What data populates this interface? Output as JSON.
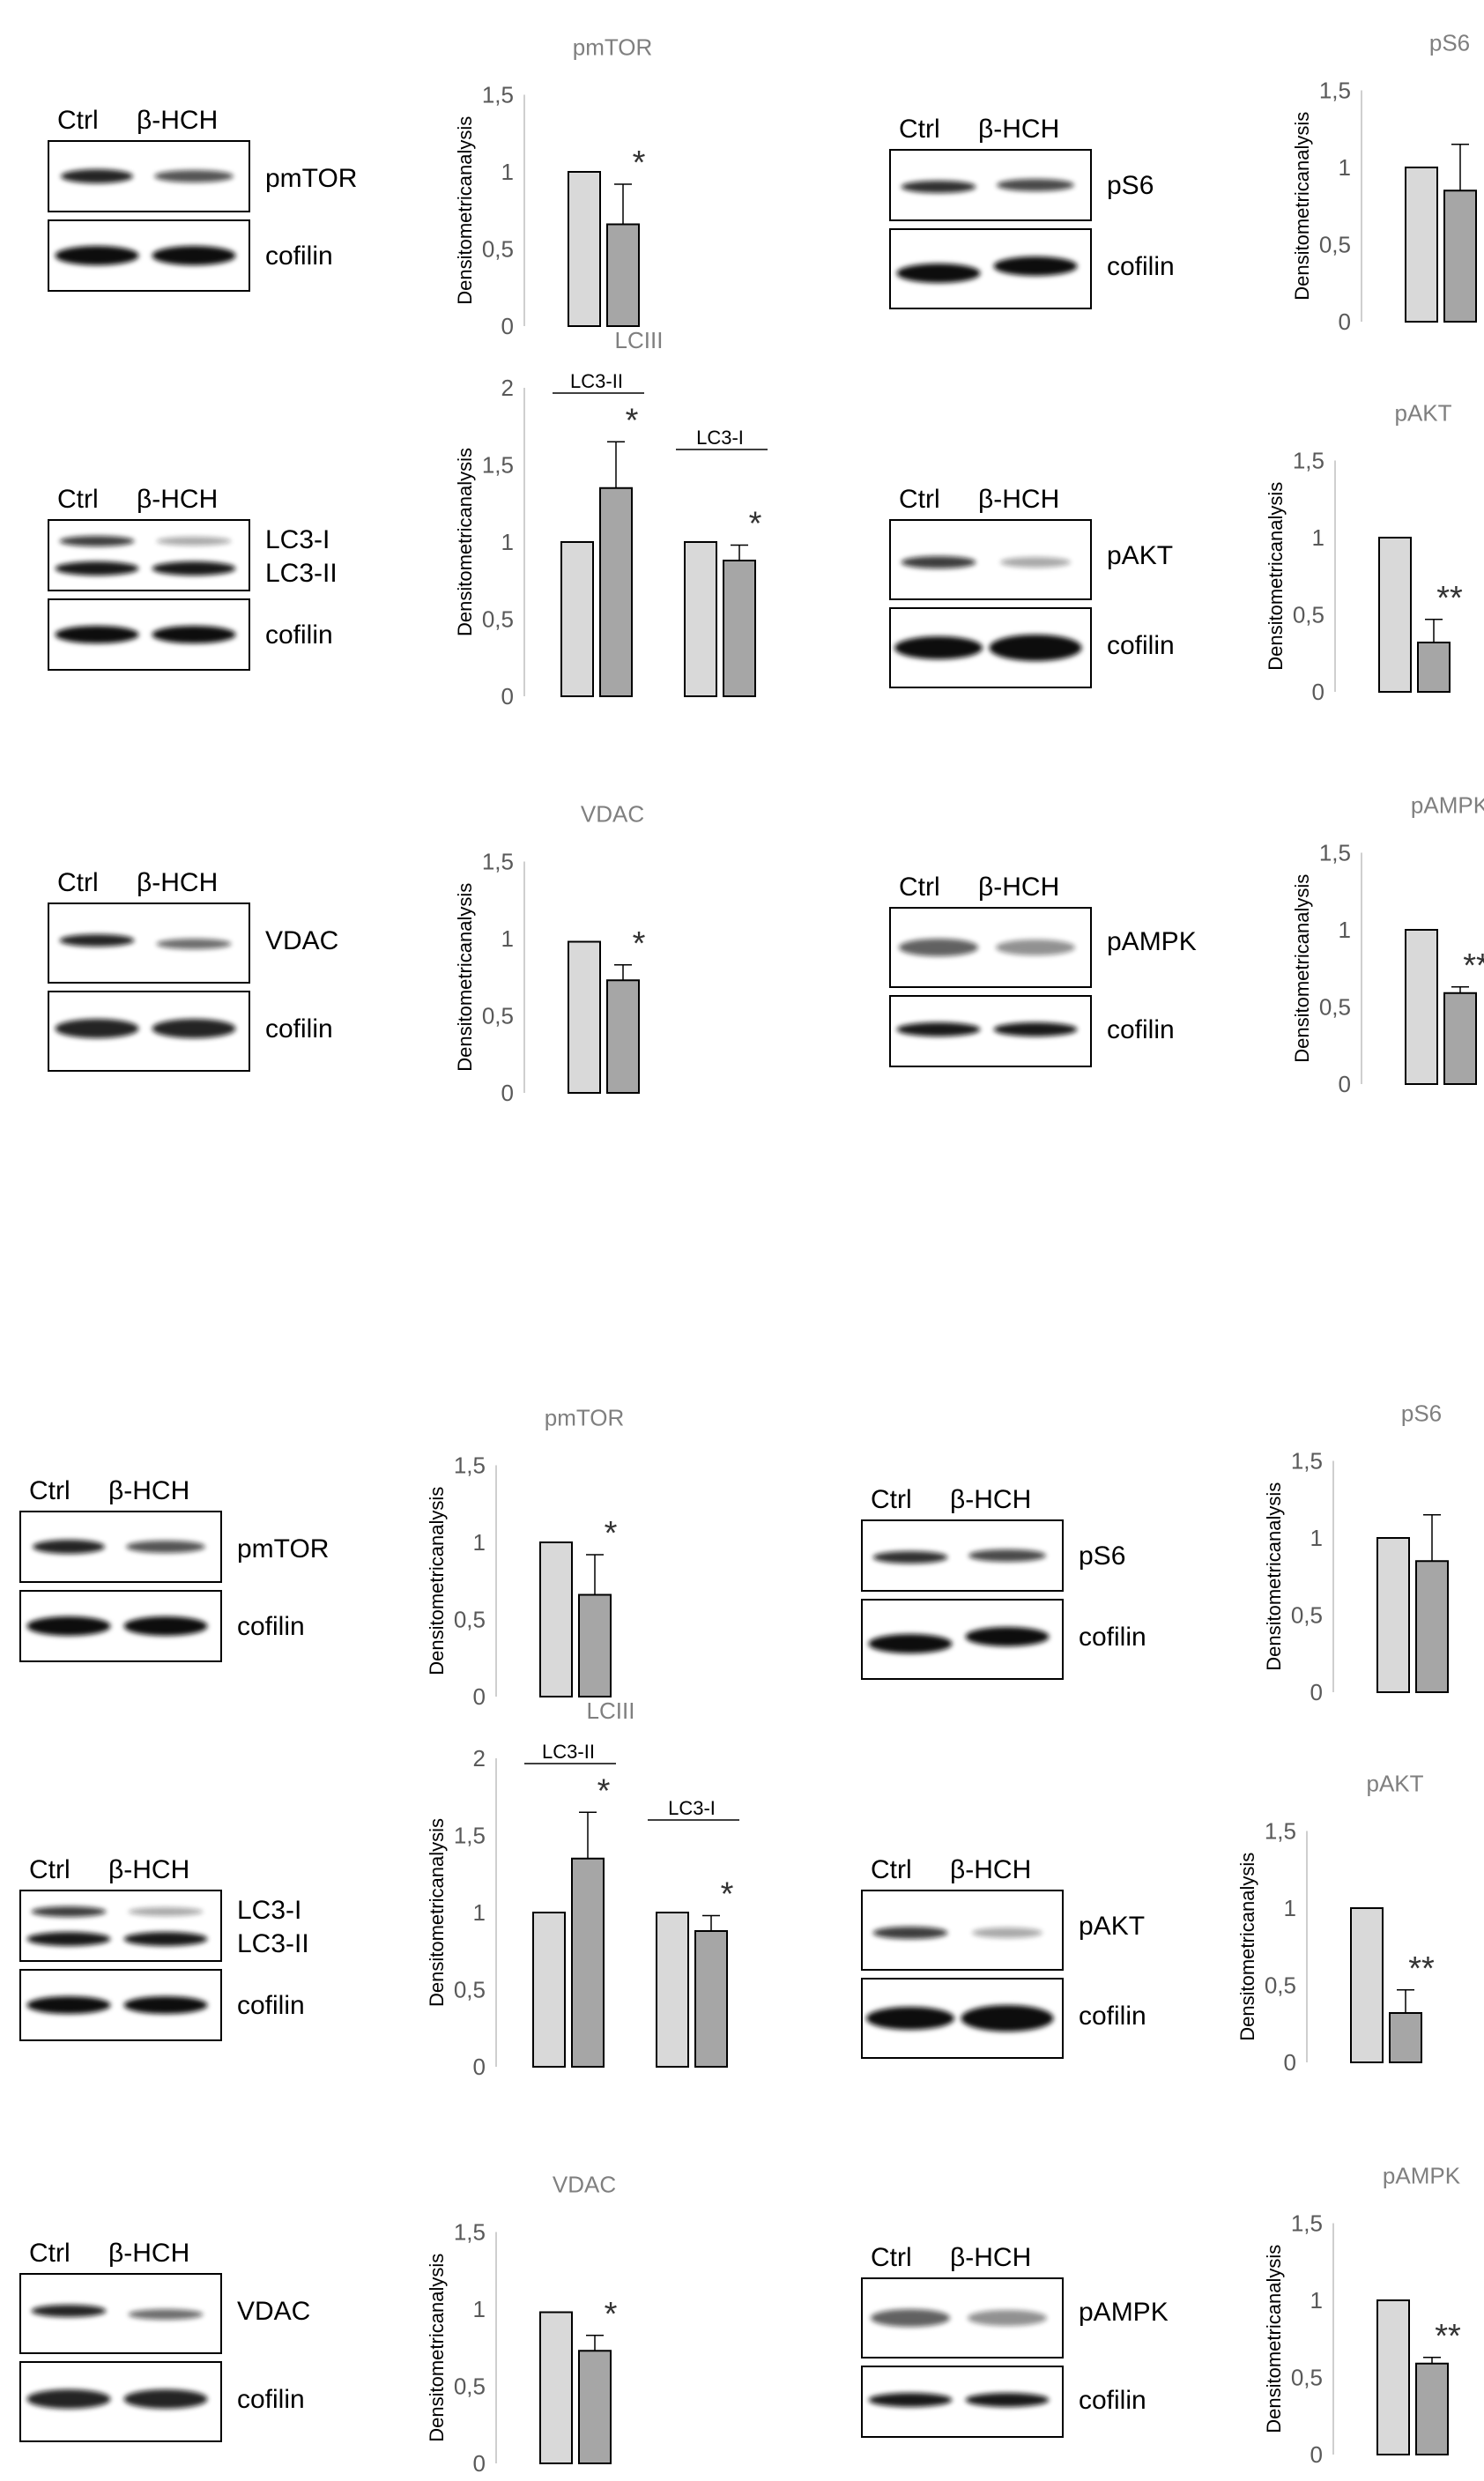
{
  "lanes": [
    "Ctrl",
    "β-HCH"
  ],
  "loading_control": "cofilin",
  "ylabel": "Densitometricanalysis",
  "tick_labels": [
    "0",
    "0,5",
    "1",
    "1,5",
    "2"
  ],
  "colors": {
    "ctrl": "#d9d9d9",
    "treated": "#a6a6a6",
    "stroke": "#000000",
    "axis": "#bfbfbf",
    "title": "#7f7f7f",
    "text": "#000000"
  },
  "panels": [
    {
      "id": "pmtor",
      "blot_labels": [
        "pmTOR",
        "cofilin"
      ]
    },
    {
      "id": "ps6",
      "blot_labels": [
        "pS6",
        "cofilin"
      ]
    },
    {
      "id": "lc3",
      "blot_labels": [
        "LC3-I",
        "LC3-II",
        "cofilin"
      ]
    },
    {
      "id": "pakt",
      "blot_labels": [
        "pAKT",
        "cofilin"
      ]
    },
    {
      "id": "vdac",
      "blot_labels": [
        "VDAC",
        "cofilin"
      ]
    },
    {
      "id": "pampk",
      "blot_labels": [
        "pAMPK",
        "cofilin"
      ]
    }
  ],
  "chart_data": [
    {
      "type": "bar",
      "title": "pmTOR",
      "ylabel": "Densitometricanalysis",
      "ylim": [
        0,
        1.5
      ],
      "ticks": [
        "0",
        "0,5",
        "1",
        "1,5"
      ],
      "grid": false,
      "categories": [
        "Ctrl",
        "β-HCH"
      ],
      "values": [
        1.0,
        0.66
      ],
      "errors": [
        0,
        0.26
      ],
      "significance": "*"
    },
    {
      "type": "bar",
      "title": "pS6",
      "ylabel": "Densitometricanalysis",
      "ylim": [
        0,
        1.5
      ],
      "ticks": [
        "0",
        "0,5",
        "1",
        "1,5"
      ],
      "grid": false,
      "categories": [
        "Ctrl",
        "β-HCH"
      ],
      "values": [
        1.0,
        0.85
      ],
      "errors": [
        0,
        0.3
      ],
      "significance": ""
    },
    {
      "type": "bar",
      "title": "LCIII",
      "ylabel": "Densitometricanalysis",
      "ylim": [
        0,
        2
      ],
      "ticks": [
        "0",
        "0,5",
        "1",
        "1,5",
        "2"
      ],
      "grid": false,
      "groups": [
        {
          "name": "LC3-II",
          "categories": [
            "Ctrl",
            "β-HCH"
          ],
          "values": [
            1.0,
            1.35
          ],
          "errors": [
            0,
            0.3
          ],
          "significance": "*"
        },
        {
          "name": "LC3-I",
          "categories": [
            "Ctrl",
            "β-HCH"
          ],
          "values": [
            1.0,
            0.88
          ],
          "errors": [
            0,
            0.1
          ],
          "significance": "*"
        }
      ]
    },
    {
      "type": "bar",
      "title": "pAKT",
      "ylabel": "Densitometricanalysis",
      "ylim": [
        0,
        1.5
      ],
      "ticks": [
        "0",
        "0,5",
        "1",
        "1,5"
      ],
      "grid": false,
      "categories": [
        "Ctrl",
        "β-HCH"
      ],
      "values": [
        1.0,
        0.32
      ],
      "errors": [
        0,
        0.15
      ],
      "significance": "**"
    },
    {
      "type": "bar",
      "title": "VDAC",
      "ylabel": "Densitometricanalysis",
      "ylim": [
        0,
        1.5
      ],
      "ticks": [
        "0",
        "0,5",
        "1",
        "1,5"
      ],
      "grid": false,
      "categories": [
        "Ctrl",
        "β-HCH"
      ],
      "values": [
        0.98,
        0.73
      ],
      "errors": [
        0,
        0.1
      ],
      "significance": "*"
    },
    {
      "type": "bar",
      "title": "pAMPK",
      "ylabel": "Densitometricanalysis",
      "ylim": [
        0,
        1.5
      ],
      "ticks": [
        "0",
        "0,5",
        "1",
        "1,5"
      ],
      "grid": false,
      "categories": [
        "Ctrl",
        "β-HCH"
      ],
      "values": [
        1.0,
        0.59
      ],
      "errors": [
        0,
        0.04
      ],
      "significance": "**"
    }
  ]
}
